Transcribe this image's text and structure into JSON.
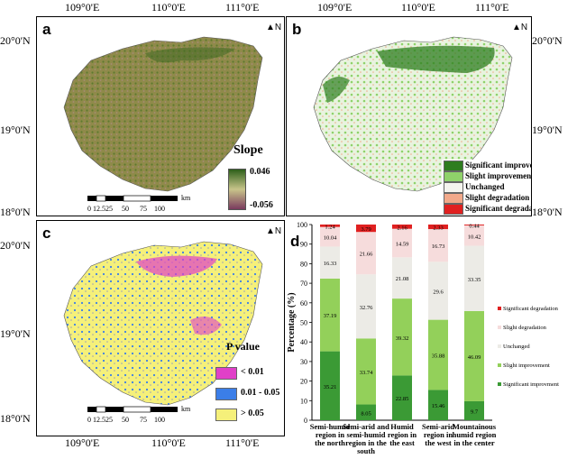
{
  "panels": {
    "a": {
      "label": "a",
      "legend_title": "Slope",
      "max": "0.046",
      "min": "-0.056"
    },
    "b": {
      "label": "b",
      "legend": [
        {
          "label": "Significant improvement",
          "color": "#2e7d1f"
        },
        {
          "label": "Slight improvement",
          "color": "#8fd26a"
        },
        {
          "label": "Unchanged",
          "color": "#f4f4ee"
        },
        {
          "label": "Slight degradation",
          "color": "#f2a98a"
        },
        {
          "label": "Significant degradation",
          "color": "#e02020"
        }
      ]
    },
    "c": {
      "label": "c",
      "legend_title": "P value",
      "legend": [
        {
          "label": "< 0.01",
          "color": "#e040c8"
        },
        {
          "label": "0.01 - 0.05",
          "color": "#3b7ee8"
        },
        {
          "label": "> 0.05",
          "color": "#f5f07a"
        }
      ]
    },
    "d": {
      "label": "d"
    }
  },
  "axes": {
    "lon": [
      "109°0'E",
      "110°0'E",
      "111°0'E"
    ],
    "lat": [
      "20°0'N",
      "19°0'N",
      "18°0'N"
    ]
  },
  "north_label": "N",
  "scale": {
    "ticks": [
      "0",
      "12.5",
      "25",
      "50",
      "75",
      "100"
    ],
    "unit": "km"
  },
  "chart_data": {
    "type": "bar",
    "stacked": true,
    "ylabel": "Percentage (%)",
    "ylim": [
      0,
      100
    ],
    "yticks": [
      0,
      10,
      20,
      30,
      40,
      50,
      60,
      70,
      80,
      90,
      100
    ],
    "categories": [
      [
        "Semi-humid",
        "region in",
        "the north"
      ],
      [
        "Semi-arid and",
        "semi-humid",
        "region in the",
        "south"
      ],
      [
        "Humid",
        "region in",
        "the east"
      ],
      [
        "Semi-arid",
        "region in",
        "the west"
      ],
      [
        "Mountainous",
        "humid region",
        "in the center"
      ]
    ],
    "series": [
      {
        "name": "Significant improvment",
        "color": "#3b9a35",
        "values": [
          35.21,
          8.05,
          22.85,
          15.46,
          9.7
        ],
        "labels": [
          "35.21",
          "8.05",
          "22.85",
          "15.46",
          "9.7"
        ]
      },
      {
        "name": "Slight improvement",
        "color": "#93d05a",
        "values": [
          37.19,
          33.74,
          39.32,
          35.88,
          46.09
        ],
        "labels": [
          "37.19",
          "33.74",
          "39.32",
          "35.88",
          "46.09"
        ]
      },
      {
        "name": "Unchanged",
        "color": "#ecebe6",
        "values": [
          16.33,
          32.76,
          21.08,
          29.6,
          33.35
        ],
        "labels": [
          "16.33",
          "32.76",
          "21.08",
          "29.6",
          "33.35"
        ]
      },
      {
        "name": "Slight degradation",
        "color": "#f6dcdc",
        "values": [
          10.04,
          21.66,
          14.59,
          16.73,
          10.42
        ],
        "labels": [
          "10.04",
          "21.66",
          "14.59",
          "16.73",
          "10.42"
        ]
      },
      {
        "name": "Significant degradation",
        "color": "#e02020",
        "values": [
          1.24,
          3.79,
          2.16,
          2.33,
          0.44
        ],
        "labels": [
          "1.24",
          "3.79",
          "2.16",
          "2.33",
          "0.44"
        ]
      }
    ],
    "legend_order": [
      "Significant degradation",
      "Slight degradation",
      "Unchanged",
      "Slight improvement",
      "Significant improvment"
    ]
  }
}
